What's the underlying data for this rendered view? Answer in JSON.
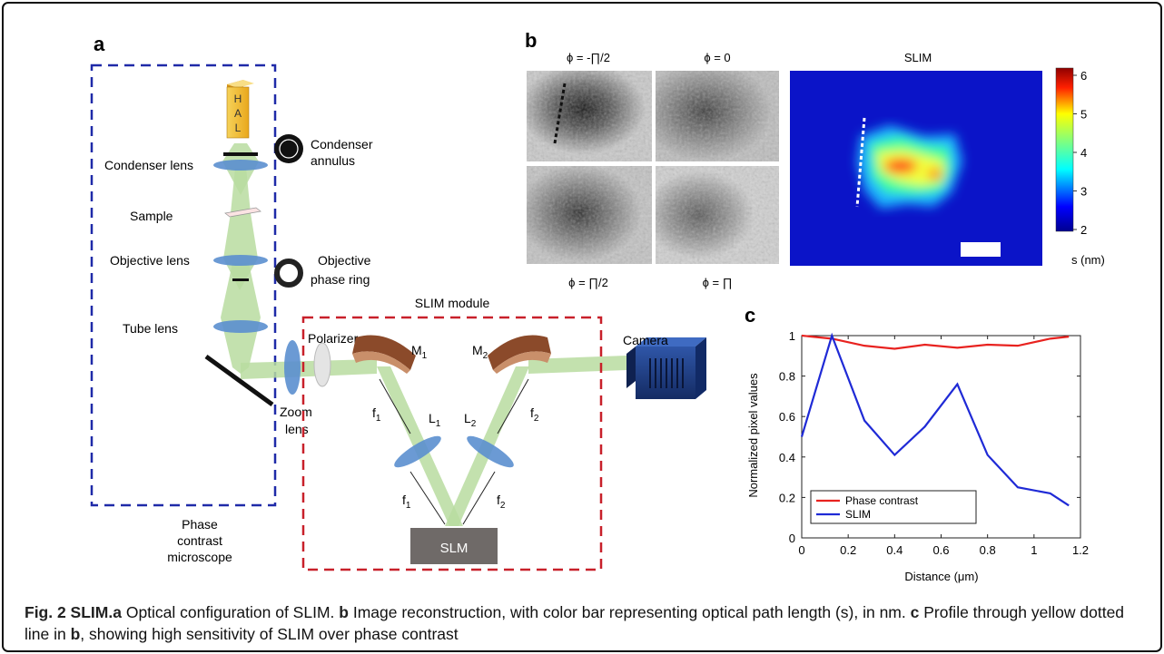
{
  "panel_a": {
    "label": "a",
    "hal_letters": [
      "H",
      "A",
      "L"
    ],
    "condenser_lens": "Condenser lens",
    "condenser_annulus": [
      "Condenser",
      "annulus"
    ],
    "sample": "Sample",
    "objective_lens": "Objective lens",
    "objective_phase_ring": [
      "Objective",
      "phase ring"
    ],
    "tube_lens": "Tube lens",
    "microscope_label": [
      "Phase",
      "contrast",
      "microscope"
    ],
    "zoom_lens": [
      "Zoom",
      "lens"
    ],
    "polarizer": "Polarizer",
    "slim_module": "SLIM  module",
    "m1": "M",
    "m1_sub": "1",
    "m2": "M",
    "m2_sub": "2",
    "l1": "L",
    "l1_sub": "1",
    "l2": "L",
    "l2_sub": "2",
    "f": "f",
    "f1_sub": "1",
    "f2_sub": "2",
    "camera": "Camera",
    "slm": "SLM",
    "colors": {
      "microscope_box": "#1f2aa8",
      "slim_box": "#c8202a",
      "beam": "#b9dca0",
      "lens": "#5b8fcf",
      "mirror": "#8b4a2a",
      "hal": "#f2c23a",
      "camera": "#1e3a7a",
      "slm": "#6f6a68"
    }
  },
  "panel_b": {
    "label": "b",
    "titles": [
      "ϕ = -∏/2",
      "ϕ = 0",
      "SLIM"
    ],
    "bottom_titles": [
      "ϕ = ∏/2",
      "ϕ = ∏"
    ],
    "colorbar_ticks": [
      "6",
      "5",
      "4",
      "3",
      "2"
    ],
    "colorbar_label": "s (nm)"
  },
  "panel_c": {
    "label": "c",
    "chart_data": {
      "type": "line",
      "xlabel": "Distance (μm)",
      "ylabel": "Normalized pixel values",
      "xlim": [
        0,
        1.2
      ],
      "ylim": [
        0,
        1
      ],
      "xticks": [
        "0",
        "0.2",
        "0.4",
        "0.6",
        "0.8",
        "1",
        "1.2"
      ],
      "yticks": [
        "0",
        "0.2",
        "0.4",
        "0.6",
        "0.8",
        "1"
      ],
      "legend_position": "bottom-left",
      "series": [
        {
          "name": "Phase contrast",
          "color": "#e8221f",
          "x": [
            0,
            0.13,
            0.27,
            0.4,
            0.53,
            0.67,
            0.8,
            0.93,
            1.07,
            1.15
          ],
          "y": [
            1.0,
            0.985,
            0.95,
            0.935,
            0.955,
            0.94,
            0.955,
            0.95,
            0.985,
            0.995
          ]
        },
        {
          "name": "SLIM",
          "color": "#1f2ad6",
          "x": [
            0,
            0.13,
            0.27,
            0.4,
            0.53,
            0.67,
            0.8,
            0.93,
            1.07,
            1.15
          ],
          "y": [
            0.5,
            1.0,
            0.58,
            0.41,
            0.55,
            0.76,
            0.41,
            0.25,
            0.22,
            0.16
          ]
        }
      ]
    }
  },
  "caption": {
    "title": "Fig. 2 SLIM.",
    "a": "a",
    "text_a": " Optical configuration of SLIM. ",
    "b": "b",
    "text_b": " Image reconstruction, with color bar representing optical path length (s), in nm. ",
    "c": "c",
    "text_c": " Profile through yellow dotted line in ",
    "b2": "b",
    "text_end": ", showing high sensitivity of SLIM over phase contrast"
  }
}
